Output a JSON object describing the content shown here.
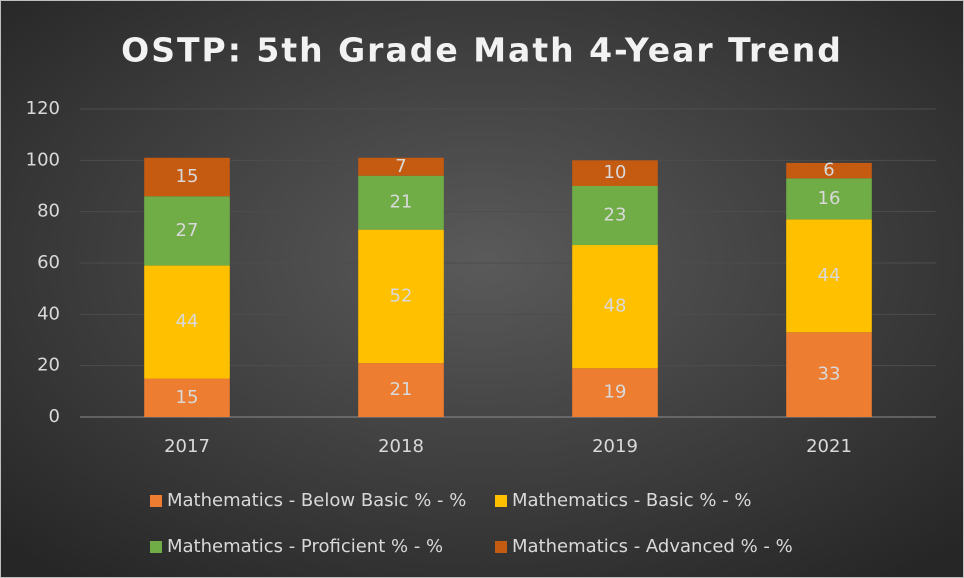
{
  "chart_data": {
    "type": "stacked_bar",
    "title": "OSTP: 5th Grade Math 4-Year Trend",
    "categories": [
      "2017",
      "2018",
      "2019",
      "2021"
    ],
    "series": [
      {
        "name": "Mathematics - Below Basic % - %",
        "color": "#ed7d31",
        "values": [
          15,
          21,
          19,
          33
        ]
      },
      {
        "name": "Mathematics - Basic % - %",
        "color": "#ffc000",
        "values": [
          44,
          52,
          48,
          44
        ]
      },
      {
        "name": "Mathematics - Proficient % - %",
        "color": "#70ad47",
        "values": [
          27,
          21,
          23,
          16
        ]
      },
      {
        "name": "Mathematics - Advanced % - %",
        "color": "#c55a11",
        "values": [
          15,
          7,
          10,
          6
        ]
      }
    ],
    "ylim": [
      0,
      120
    ],
    "yticks": [
      0,
      20,
      40,
      60,
      80,
      100,
      120
    ],
    "grid": true,
    "legend": "bottom"
  }
}
